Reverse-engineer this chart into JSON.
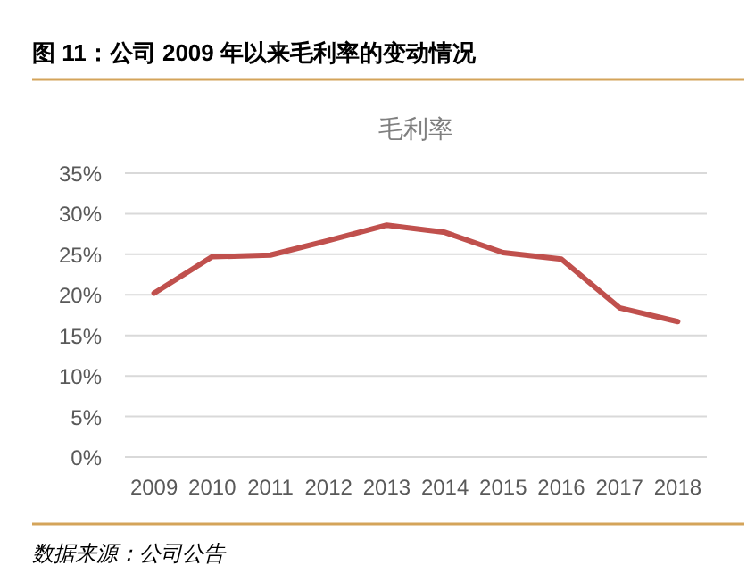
{
  "chart_data": {
    "type": "line",
    "title": "图 11：公司 2009 年以来毛利率的变动情况",
    "subtitle": "毛利率",
    "categories": [
      "2009",
      "2010",
      "2011",
      "2012",
      "2013",
      "2014",
      "2015",
      "2016",
      "2017",
      "2018"
    ],
    "series": [
      {
        "color": "#c0504d",
        "values": [
          20.2,
          24.7,
          24.9,
          26.7,
          28.6,
          27.7,
          25.2,
          24.4,
          18.4,
          16.7
        ]
      }
    ],
    "ylim": [
      0,
      35
    ],
    "yticks": [
      {
        "value": 0,
        "label": "0%"
      },
      {
        "value": 5,
        "label": "5%"
      },
      {
        "value": 10,
        "label": "10%"
      },
      {
        "value": 15,
        "label": "15%"
      },
      {
        "value": 20,
        "label": "20%"
      },
      {
        "value": 25,
        "label": "25%"
      },
      {
        "value": 30,
        "label": "30%"
      },
      {
        "value": 35,
        "label": "35%"
      }
    ],
    "grid": "y",
    "marker": "none",
    "line_style": "solid",
    "annotations": [
      "数据来源：公司公告"
    ]
  }
}
